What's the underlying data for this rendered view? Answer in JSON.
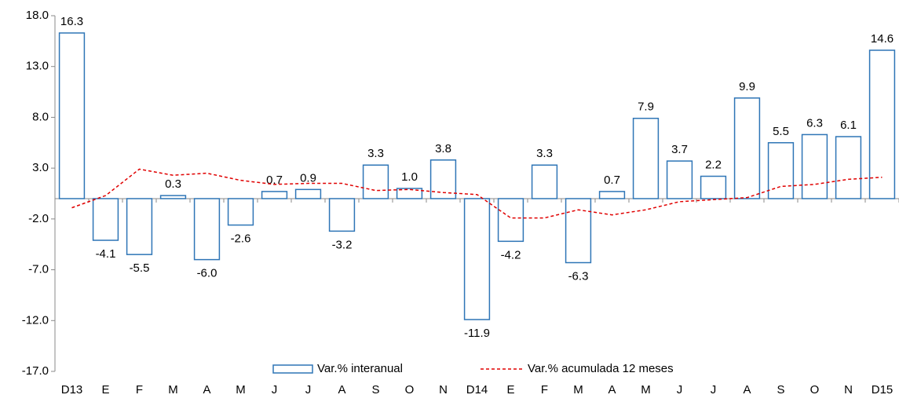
{
  "chart_data": {
    "type": "bar",
    "categories": [
      "D13",
      "E",
      "F",
      "M",
      "A",
      "M",
      "J",
      "J",
      "A",
      "S",
      "O",
      "N",
      "D14",
      "E",
      "F",
      "M",
      "A",
      "M",
      "J",
      "J",
      "A",
      "S",
      "O",
      "N",
      "D15"
    ],
    "series": [
      {
        "name": "Var.% interanual",
        "type": "bar",
        "color": "#2e75b6",
        "values": [
          16.3,
          -4.1,
          -5.5,
          0.3,
          -6.0,
          -2.6,
          0.7,
          0.9,
          -3.2,
          3.3,
          1.0,
          3.8,
          -11.9,
          -4.2,
          3.3,
          -6.3,
          0.7,
          7.9,
          3.7,
          2.2,
          9.9,
          5.5,
          6.3,
          6.1,
          14.6
        ],
        "value_labels": [
          "16.3",
          "-4.1",
          "-5.5",
          "0.3",
          "-6.0",
          "-2.6",
          "0.7",
          "0.9",
          "-3.2",
          "3.3",
          "1.0",
          "3.8",
          "-11.9",
          "-4.2",
          "3.3",
          "-6.3",
          "0.7",
          "7.9",
          "3.7",
          "2.2",
          "9.9",
          "5.5",
          "6.3",
          "6.1",
          "14.6"
        ]
      },
      {
        "name": "Var.% acumulada 12 meses",
        "type": "line",
        "color": "#e00000",
        "values": [
          -0.9,
          0.3,
          2.9,
          2.3,
          2.5,
          1.8,
          1.4,
          1.5,
          1.5,
          0.8,
          0.9,
          0.6,
          0.4,
          -1.9,
          -1.9,
          -1.1,
          -1.6,
          -1.1,
          -0.3,
          -0.1,
          0.1,
          1.2,
          1.4,
          1.9,
          2.1
        ]
      }
    ],
    "ylim": [
      -17,
      18
    ],
    "yticks": [
      {
        "value": -17,
        "label": "-17.0"
      },
      {
        "value": -12,
        "label": "-12.0"
      },
      {
        "value": -7,
        "label": "-7.0"
      },
      {
        "value": -2,
        "label": "-2.0"
      },
      {
        "value": 3,
        "label": "3.0"
      },
      {
        "value": 8,
        "label": "8.0"
      },
      {
        "value": 13,
        "label": "13.0"
      },
      {
        "value": 18,
        "label": "18.0"
      }
    ],
    "grid": false,
    "legend": "bottom"
  }
}
